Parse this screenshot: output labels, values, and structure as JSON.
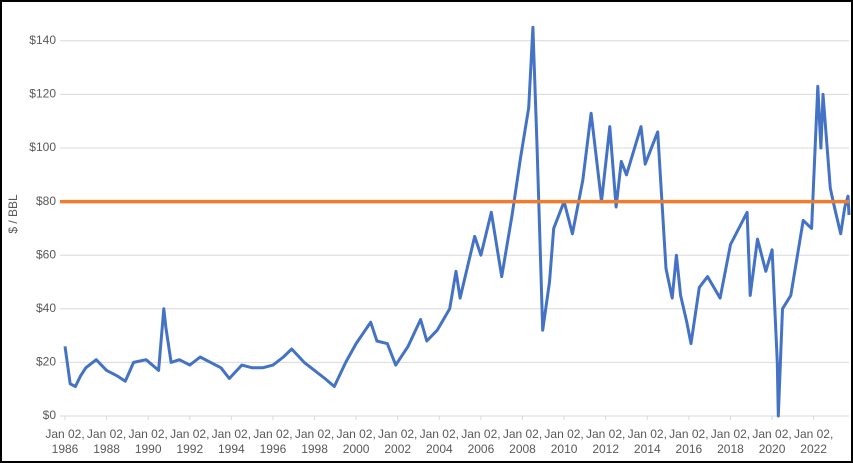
{
  "chart_data": {
    "type": "line",
    "y_label": "$ / BBL",
    "xlim": [
      1986,
      2023.7
    ],
    "ylim": [
      0,
      150
    ],
    "yticks": [
      {
        "value": 0,
        "label": "$0"
      },
      {
        "value": 20,
        "label": "$20"
      },
      {
        "value": 40,
        "label": "$40"
      },
      {
        "value": 60,
        "label": "$60"
      },
      {
        "value": 80,
        "label": "$80"
      },
      {
        "value": 100,
        "label": "$100"
      },
      {
        "value": 120,
        "label": "$120"
      },
      {
        "value": 140,
        "label": "$140"
      }
    ],
    "xticks": [
      {
        "value": 1986,
        "label": "Jan 02, 1986"
      },
      {
        "value": 1988,
        "label": "Jan 02, 1988"
      },
      {
        "value": 1990,
        "label": "Jan 02, 1990"
      },
      {
        "value": 1992,
        "label": "Jan 02, 1992"
      },
      {
        "value": 1994,
        "label": "Jan 02, 1994"
      },
      {
        "value": 1996,
        "label": "Jan 02, 1996"
      },
      {
        "value": 1998,
        "label": "Jan 02, 1998"
      },
      {
        "value": 2000,
        "label": "Jan 02, 2000"
      },
      {
        "value": 2002,
        "label": "Jan 02, 2002"
      },
      {
        "value": 2004,
        "label": "Jan 02, 2004"
      },
      {
        "value": 2006,
        "label": "Jan 02, 2006"
      },
      {
        "value": 2008,
        "label": "Jan 02, 2008"
      },
      {
        "value": 2010,
        "label": "Jan 02, 2010"
      },
      {
        "value": 2012,
        "label": "Jan 02, 2012"
      },
      {
        "value": 2014,
        "label": "Jan 02, 2014"
      },
      {
        "value": 2016,
        "label": "Jan 02, 2016"
      },
      {
        "value": 2018,
        "label": "Jan 02, 2018"
      },
      {
        "value": 2020,
        "label": "Jan 02, 2020"
      },
      {
        "value": 2022,
        "label": "Jan 02, 2022"
      }
    ],
    "grid": true,
    "reference_line": {
      "value": 80,
      "color": "#ed7d31"
    },
    "series": [
      {
        "color": "#4472c4",
        "x": [
          1986.0,
          1986.25,
          1986.5,
          1986.75,
          1987.0,
          1987.5,
          1988.0,
          1988.5,
          1988.9,
          1989.3,
          1989.9,
          1990.5,
          1990.75,
          1990.85,
          1991.1,
          1991.5,
          1992.0,
          1992.5,
          1993.0,
          1993.5,
          1993.9,
          1994.5,
          1995.0,
          1995.5,
          1996.0,
          1996.5,
          1996.9,
          1997.5,
          1998.0,
          1998.5,
          1998.95,
          1999.5,
          2000.0,
          2000.7,
          2001.0,
          2001.5,
          2001.9,
          2002.5,
          2003.1,
          2003.4,
          2003.9,
          2004.5,
          2004.8,
          2005.0,
          2005.7,
          2006.0,
          2006.5,
          2007.0,
          2007.5,
          2007.9,
          2008.3,
          2008.5,
          2008.7,
          2008.97,
          2009.3,
          2009.5,
          2010.0,
          2010.4,
          2010.9,
          2011.3,
          2011.8,
          2012.2,
          2012.5,
          2012.75,
          2013.0,
          2013.7,
          2013.9,
          2014.3,
          2014.5,
          2014.9,
          2015.2,
          2015.4,
          2015.6,
          2015.9,
          2016.1,
          2016.5,
          2016.9,
          2017.5,
          2018.0,
          2018.8,
          2018.95,
          2019.3,
          2019.7,
          2020.0,
          2020.25,
          2020.3,
          2020.5,
          2020.9,
          2021.5,
          2021.9,
          2022.2,
          2022.35,
          2022.45,
          2022.8,
          2023.0,
          2023.3,
          2023.5,
          2023.65,
          2023.7
        ],
        "values": [
          26,
          12,
          11,
          15,
          18,
          21,
          17,
          15,
          13,
          20,
          21,
          17,
          40,
          33,
          20,
          21,
          19,
          22,
          20,
          18,
          14,
          19,
          18,
          18,
          19,
          22,
          25,
          20,
          17,
          14,
          11,
          20,
          27,
          35,
          28,
          27,
          19,
          26,
          36,
          28,
          32,
          40,
          54,
          44,
          67,
          60,
          76,
          52,
          75,
          96,
          115,
          145,
          100,
          32,
          50,
          70,
          80,
          68,
          88,
          113,
          80,
          108,
          78,
          95,
          90,
          108,
          94,
          102,
          106,
          55,
          44,
          60,
          45,
          35,
          27,
          48,
          52,
          44,
          64,
          76,
          45,
          66,
          54,
          62,
          20,
          0,
          40,
          45,
          73,
          70,
          123,
          100,
          120,
          85,
          78,
          68,
          78,
          82,
          75
        ]
      }
    ]
  }
}
